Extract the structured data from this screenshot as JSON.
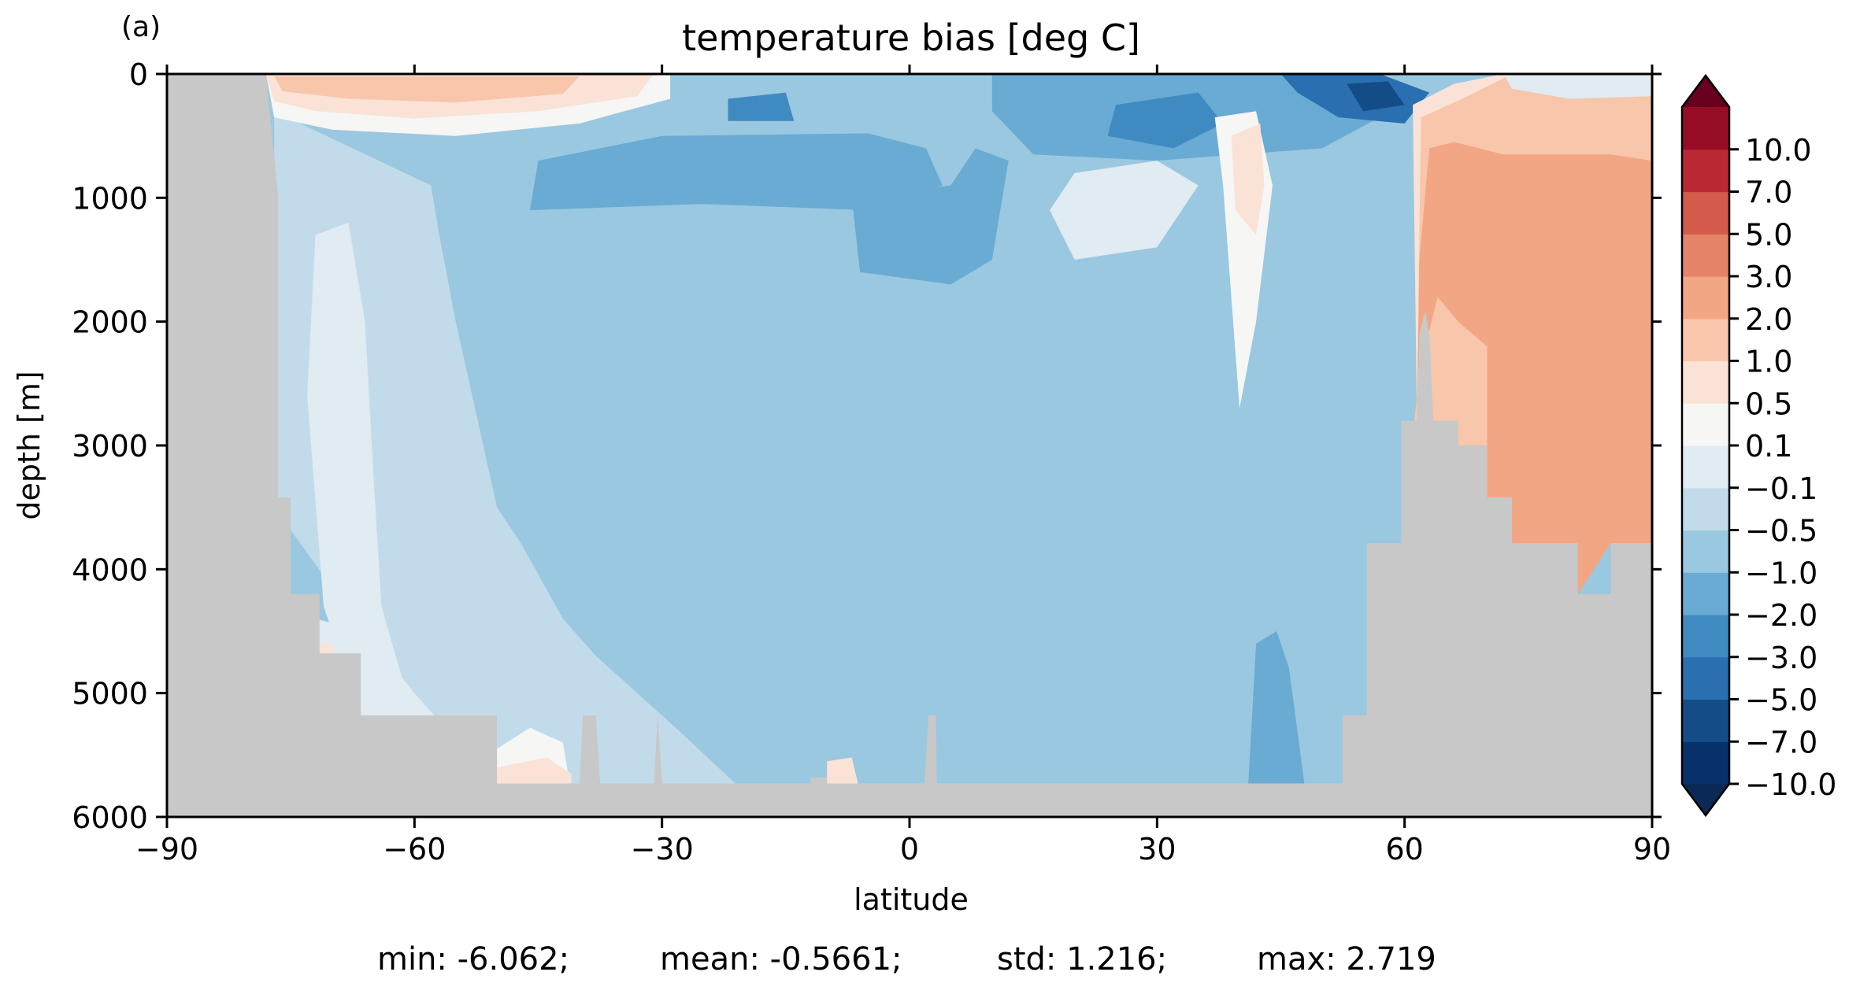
{
  "panel_label": "(a)",
  "chart_data": {
    "type": "heatmap",
    "subtype": "filled-contour latitude-depth section",
    "title": "temperature bias [deg C]",
    "xlabel": "latitude",
    "ylabel": "depth [m]",
    "xlim": [
      -90,
      90
    ],
    "ylim": [
      6000,
      0
    ],
    "y_inverted": true,
    "xticks": [
      -90,
      -60,
      -30,
      0,
      30,
      60,
      90
    ],
    "xtick_labels": [
      "−90",
      "−60",
      "−30",
      "0",
      "30",
      "60",
      "90"
    ],
    "yticks": [
      0,
      1000,
      2000,
      3000,
      4000,
      5000,
      6000
    ],
    "ytick_labels": [
      "0",
      "1000",
      "2000",
      "3000",
      "4000",
      "5000",
      "6000"
    ],
    "grid": false,
    "land_mask_color": "#c8c8c8",
    "colorbar": {
      "position": "right",
      "extend": "both",
      "levels": [
        -10,
        -7,
        -5,
        -3,
        -2,
        -1,
        -0.5,
        -0.1,
        0.1,
        0.5,
        1,
        2,
        3,
        5,
        7,
        10
      ],
      "tick_labels": [
        "−10.0",
        "−7.0",
        "−5.0",
        "−3.0",
        "−2.0",
        "−1.0",
        "−0.5",
        "−0.1",
        "0.1",
        "0.5",
        "1.0",
        "2.0",
        "3.0",
        "5.0",
        "7.0",
        "10.0"
      ],
      "colors": [
        "#08306b",
        "#134c87",
        "#2a6fb0",
        "#3f8bc1",
        "#6aabd3",
        "#9ac8e0",
        "#c2dbea",
        "#e0ebf2",
        "#f6f6f5",
        "#fae3d6",
        "#f7c6ab",
        "#f3a683",
        "#e58368",
        "#d45a4c",
        "#bb2a34",
        "#970d26"
      ],
      "under_color": "#0a2a55",
      "over_color": "#67001f"
    },
    "bathymetry_depth_m": [
      {
        "lat": -90,
        "depth": 0
      },
      {
        "lat": -78,
        "depth": 0
      },
      {
        "lat": -76.5,
        "depth": 1000
      },
      {
        "lat": -76.5,
        "depth": 3420
      },
      {
        "lat": -75,
        "depth": 3420
      },
      {
        "lat": -75,
        "depth": 4200
      },
      {
        "lat": -71.5,
        "depth": 4200
      },
      {
        "lat": -71.5,
        "depth": 4680
      },
      {
        "lat": -66.5,
        "depth": 4680
      },
      {
        "lat": -66.5,
        "depth": 5180
      },
      {
        "lat": -50,
        "depth": 5180
      },
      {
        "lat": -50,
        "depth": 5730
      },
      {
        "lat": -40,
        "depth": 5730
      },
      {
        "lat": -39.6,
        "depth": 5180
      },
      {
        "lat": -38,
        "depth": 5180
      },
      {
        "lat": -37.5,
        "depth": 5730
      },
      {
        "lat": -31,
        "depth": 5730
      },
      {
        "lat": -30.5,
        "depth": 5180
      },
      {
        "lat": -30,
        "depth": 5730
      },
      {
        "lat": -12,
        "depth": 5730
      },
      {
        "lat": -12,
        "depth": 5680
      },
      {
        "lat": -10,
        "depth": 5680
      },
      {
        "lat": -10,
        "depth": 5730
      },
      {
        "lat": 1.8,
        "depth": 5730
      },
      {
        "lat": 2.3,
        "depth": 5180
      },
      {
        "lat": 3.2,
        "depth": 5180
      },
      {
        "lat": 3.3,
        "depth": 5730
      },
      {
        "lat": 52.5,
        "depth": 5730
      },
      {
        "lat": 52.5,
        "depth": 5180
      },
      {
        "lat": 55.4,
        "depth": 5180
      },
      {
        "lat": 55.4,
        "depth": 3790
      },
      {
        "lat": 59.6,
        "depth": 3790
      },
      {
        "lat": 59.6,
        "depth": 2800
      },
      {
        "lat": 61.5,
        "depth": 2800
      },
      {
        "lat": 61.8,
        "depth": 2100
      },
      {
        "lat": 62.5,
        "depth": 1910
      },
      {
        "lat": 63,
        "depth": 2100
      },
      {
        "lat": 63.5,
        "depth": 2800
      },
      {
        "lat": 66.5,
        "depth": 2800
      },
      {
        "lat": 66.5,
        "depth": 3000
      },
      {
        "lat": 70,
        "depth": 3000
      },
      {
        "lat": 70,
        "depth": 3420
      },
      {
        "lat": 73,
        "depth": 3420
      },
      {
        "lat": 73,
        "depth": 3790
      },
      {
        "lat": 81,
        "depth": 3790
      },
      {
        "lat": 81,
        "depth": 4200
      },
      {
        "lat": 85,
        "depth": 4200
      },
      {
        "lat": 85,
        "depth": 3790
      },
      {
        "lat": 90,
        "depth": 3790
      }
    ],
    "regions": [
      {
        "name": "ocean-interior",
        "level": -1.0,
        "pts": [
          [
            -90,
            0
          ],
          [
            90,
            0
          ],
          [
            90,
            6000
          ],
          [
            -90,
            6000
          ]
        ]
      },
      {
        "name": "southern-ocean-light",
        "level": -0.5,
        "pts": [
          [
            -77,
            300
          ],
          [
            -58,
            900
          ],
          [
            -57,
            1300
          ],
          [
            -55,
            2000
          ],
          [
            -52,
            2900
          ],
          [
            -50,
            3500
          ],
          [
            -47,
            3800
          ],
          [
            -42,
            4400
          ],
          [
            -38,
            4700
          ],
          [
            -33,
            5000
          ],
          [
            -28,
            5300
          ],
          [
            -20,
            5800
          ],
          [
            -52,
            5800
          ],
          [
            -77,
            3500
          ]
        ]
      },
      {
        "name": "southern-ocean-neutral",
        "level": -0.1,
        "pts": [
          [
            -72,
            1300
          ],
          [
            -68,
            1200
          ],
          [
            -66,
            2000
          ],
          [
            -65,
            3200
          ],
          [
            -64,
            4300
          ],
          [
            -61,
            5000
          ],
          [
            -57,
            5300
          ],
          [
            -66,
            5300
          ],
          [
            -71,
            4300
          ],
          [
            -73,
            2600
          ]
        ]
      },
      {
        "name": "antarctic-bottom-neutral",
        "level": -0.1,
        "pts": [
          [
            -72,
            4400
          ],
          [
            -66,
            4500
          ],
          [
            -60,
            5000
          ],
          [
            -56,
            5300
          ],
          [
            -70,
            5300
          ]
        ]
      },
      {
        "name": "antarctic-shelf-warm",
        "level": 0.5,
        "pts": [
          [
            -72,
            4600
          ],
          [
            -70,
            4600
          ],
          [
            -69,
            5000
          ],
          [
            -66,
            5200
          ],
          [
            -72,
            5200
          ]
        ]
      },
      {
        "name": "southern-abyssal-warm",
        "level": 0.1,
        "pts": [
          [
            -50,
            5450
          ],
          [
            -46,
            5280
          ],
          [
            -42,
            5400
          ],
          [
            -41,
            5800
          ],
          [
            -50,
            5800
          ]
        ]
      },
      {
        "name": "southern-abyssal-warm-core",
        "level": 0.5,
        "pts": [
          [
            -50,
            5600
          ],
          [
            -44,
            5520
          ],
          [
            -41,
            5650
          ],
          [
            -41,
            5800
          ],
          [
            -50,
            5800
          ]
        ]
      },
      {
        "name": "equatorial-abyssal-warm",
        "level": 0.5,
        "pts": [
          [
            -10,
            5550
          ],
          [
            -7,
            5520
          ],
          [
            -6,
            5800
          ],
          [
            -10,
            5800
          ]
        ]
      },
      {
        "name": "surface-southern-warm-outer",
        "level": 0.1,
        "pts": [
          [
            -78,
            0
          ],
          [
            -29,
            0
          ],
          [
            -29,
            200
          ],
          [
            -40,
            400
          ],
          [
            -55,
            500
          ],
          [
            -70,
            450
          ],
          [
            -77,
            350
          ]
        ]
      },
      {
        "name": "surface-southern-warm",
        "level": 0.5,
        "pts": [
          [
            -78,
            0
          ],
          [
            -31,
            0
          ],
          [
            -33,
            180
          ],
          [
            -45,
            300
          ],
          [
            -60,
            360
          ],
          [
            -72,
            300
          ],
          [
            -77,
            220
          ]
        ]
      },
      {
        "name": "surface-southern-warm-core",
        "level": 1.0,
        "pts": [
          [
            -77,
            20
          ],
          [
            -40,
            20
          ],
          [
            -42,
            160
          ],
          [
            -55,
            230
          ],
          [
            -68,
            200
          ],
          [
            -76,
            140
          ]
        ]
      },
      {
        "name": "upper-tropics-cool",
        "level": -2.0,
        "pts": [
          [
            -45,
            700
          ],
          [
            -30,
            500
          ],
          [
            -5,
            480
          ],
          [
            2,
            600
          ],
          [
            4,
            900
          ],
          [
            -5,
            1100
          ],
          [
            -25,
            1050
          ],
          [
            -46,
            1100
          ]
        ]
      },
      {
        "name": "tropical-thermocline-cool",
        "level": -3.0,
        "pts": [
          [
            -22,
            200
          ],
          [
            -15,
            150
          ],
          [
            -14,
            380
          ],
          [
            -22,
            380
          ]
        ]
      },
      {
        "name": "mid-latitude-intermediate-cool",
        "level": -2.0,
        "pts": [
          [
            -7,
            1000
          ],
          [
            5,
            900
          ],
          [
            8,
            600
          ],
          [
            12,
            700
          ],
          [
            10,
            1500
          ],
          [
            5,
            1700
          ],
          [
            -6,
            1600
          ]
        ]
      },
      {
        "name": "north-thermocline-cool",
        "level": -2.0,
        "pts": [
          [
            10,
            0
          ],
          [
            56,
            0
          ],
          [
            57,
            350
          ],
          [
            50,
            600
          ],
          [
            30,
            700
          ],
          [
            15,
            650
          ],
          [
            10,
            300
          ]
        ]
      },
      {
        "name": "north-thermocline-cool-core",
        "level": -3.0,
        "pts": [
          [
            25,
            250
          ],
          [
            35,
            150
          ],
          [
            38,
            400
          ],
          [
            32,
            600
          ],
          [
            24,
            500
          ]
        ]
      },
      {
        "name": "north-surface-cool-strong",
        "level": -5.0,
        "pts": [
          [
            45,
            0
          ],
          [
            57,
            0
          ],
          [
            63,
            150
          ],
          [
            60,
            400
          ],
          [
            52,
            350
          ],
          [
            47,
            150
          ]
        ]
      },
      {
        "name": "north-surface-cool-core",
        "level": -7.0,
        "pts": [
          [
            53,
            80
          ],
          [
            58,
            60
          ],
          [
            60,
            250
          ],
          [
            55,
            300
          ]
        ]
      },
      {
        "name": "north-intermediate-neutral",
        "level": -0.1,
        "pts": [
          [
            20,
            800
          ],
          [
            30,
            700
          ],
          [
            35,
            900
          ],
          [
            30,
            1400
          ],
          [
            20,
            1500
          ],
          [
            17,
            1100
          ]
        ]
      },
      {
        "name": "gulf-stream-warm-outer",
        "level": 0.1,
        "pts": [
          [
            37,
            350
          ],
          [
            42,
            300
          ],
          [
            44,
            900
          ],
          [
            42,
            2000
          ],
          [
            40,
            2700
          ],
          [
            39,
            1800
          ],
          [
            38,
            900
          ]
        ]
      },
      {
        "name": "gulf-stream-warm",
        "level": 0.5,
        "pts": [
          [
            39,
            500
          ],
          [
            42.5,
            400
          ],
          [
            43,
            900
          ],
          [
            42,
            1300
          ],
          [
            39.5,
            1100
          ]
        ]
      },
      {
        "name": "north-atlantic-deep-cool",
        "level": -2.0,
        "pts": [
          [
            42,
            4600
          ],
          [
            44.5,
            4500
          ],
          [
            46,
            4800
          ],
          [
            48,
            5800
          ],
          [
            41,
            5800
          ]
        ]
      },
      {
        "name": "arctic-warm-outer",
        "level": 0.5,
        "pts": [
          [
            61,
            250
          ],
          [
            66,
            80
          ],
          [
            72,
            0
          ],
          [
            90,
            0
          ],
          [
            90,
            3790
          ],
          [
            59.6,
            3790
          ],
          [
            59.6,
            2800
          ],
          [
            61.5,
            2800
          ]
        ]
      },
      {
        "name": "arctic-warm",
        "level": 1.0,
        "pts": [
          [
            62,
            350
          ],
          [
            67,
            200
          ],
          [
            73,
            0
          ],
          [
            90,
            0
          ],
          [
            90,
            3790
          ],
          [
            59.6,
            3790
          ],
          [
            61.5,
            2600
          ]
        ]
      },
      {
        "name": "arctic-warm-core",
        "level": 2.0,
        "pts": [
          [
            63,
            600
          ],
          [
            66,
            550
          ],
          [
            72,
            650
          ],
          [
            85,
            650
          ],
          [
            90,
            700
          ],
          [
            90,
            3790
          ],
          [
            85,
            3790
          ],
          [
            81,
            4200
          ],
          [
            81,
            3790
          ],
          [
            73,
            3790
          ],
          [
            73,
            3420
          ],
          [
            70,
            3420
          ],
          [
            70,
            2200
          ],
          [
            66.5,
            2000
          ],
          [
            64,
            1800
          ],
          [
            62.5,
            2200
          ],
          [
            61.5,
            2800
          ],
          [
            61.8,
            1500
          ]
        ]
      },
      {
        "name": "arctic-surface-cool-neutral",
        "level": -0.1,
        "pts": [
          [
            72,
            0
          ],
          [
            90,
            0
          ],
          [
            90,
            180
          ],
          [
            80,
            200
          ],
          [
            73,
            120
          ]
        ]
      }
    ]
  },
  "stats": {
    "min_text": "min: -6.062;",
    "mean_text": "mean: -0.5661;",
    "std_text": "std: 1.216;",
    "max_text": "max: 2.719"
  }
}
